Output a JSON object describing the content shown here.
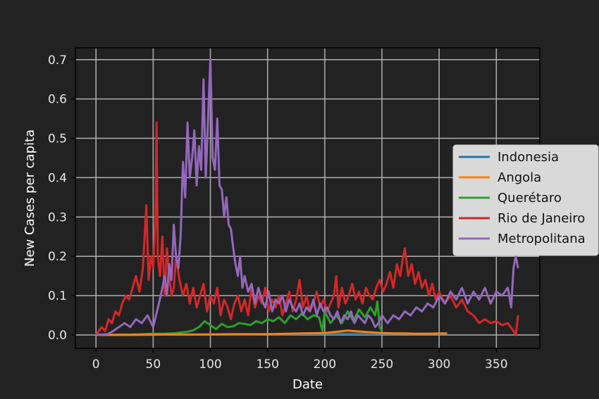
{
  "chart_data": {
    "type": "line",
    "title": "",
    "xlabel": "Date",
    "ylabel": "New Cases per capita",
    "xlim": [
      -18,
      388
    ],
    "ylim": [
      -0.034,
      0.73
    ],
    "xticks": [
      0,
      50,
      100,
      150,
      200,
      250,
      300,
      350
    ],
    "yticks": [
      0.0,
      0.1,
      0.2,
      0.3,
      0.4,
      0.5,
      0.6,
      0.7
    ],
    "xtick_labels": [
      "0",
      "50",
      "100",
      "150",
      "200",
      "250",
      "300",
      "350"
    ],
    "ytick_labels": [
      "0.0",
      "0.1",
      "0.2",
      "0.3",
      "0.4",
      "0.5",
      "0.6",
      "0.7"
    ],
    "grid": true,
    "legend_position": "center-right",
    "series": [
      {
        "name": "Indonesia",
        "color": "#1f77b4",
        "x": [
          0,
          50,
          100,
          150,
          200,
          250,
          300,
          307
        ],
        "values": [
          0.0,
          0.001,
          0.001,
          0.002,
          0.003,
          0.003,
          0.003,
          0.003
        ]
      },
      {
        "name": "Angola",
        "color": "#ff7f0e",
        "x": [
          0,
          30,
          60,
          90,
          120,
          150,
          180,
          200,
          210,
          220,
          230,
          240,
          250,
          260,
          270,
          280,
          290,
          300,
          307
        ],
        "values": [
          0.0,
          0.0,
          0.001,
          0.001,
          0.002,
          0.002,
          0.004,
          0.005,
          0.008,
          0.011,
          0.009,
          0.007,
          0.005,
          0.004,
          0.004,
          0.003,
          0.003,
          0.004,
          0.004
        ]
      },
      {
        "name": "Querétaro",
        "color": "#2ca02c",
        "x": [
          0,
          10,
          20,
          30,
          40,
          50,
          60,
          70,
          80,
          85,
          90,
          95,
          100,
          105,
          110,
          115,
          120,
          125,
          130,
          135,
          140,
          145,
          150,
          155,
          160,
          165,
          170,
          175,
          180,
          185,
          190,
          195,
          198,
          200,
          205,
          210,
          215,
          220,
          225,
          230,
          235,
          240,
          244,
          246,
          248,
          250
        ],
        "values": [
          0.0,
          0.0,
          0.001,
          0.001,
          0.002,
          0.003,
          0.003,
          0.005,
          0.008,
          0.012,
          0.02,
          0.035,
          0.025,
          0.015,
          0.028,
          0.02,
          0.022,
          0.03,
          0.028,
          0.025,
          0.035,
          0.03,
          0.04,
          0.035,
          0.045,
          0.03,
          0.05,
          0.04,
          0.055,
          0.04,
          0.05,
          0.045,
          0.01,
          0.06,
          0.03,
          0.05,
          0.03,
          0.06,
          0.035,
          0.065,
          0.045,
          0.07,
          0.05,
          0.085,
          0.02,
          0.01
        ]
      },
      {
        "name": "Rio de Janeiro",
        "color": "#d62728",
        "x": [
          0,
          5,
          8,
          11,
          14,
          17,
          20,
          23,
          26,
          29,
          32,
          35,
          38,
          41,
          44,
          46,
          48,
          50,
          52,
          53,
          54,
          56,
          58,
          60,
          62,
          64,
          66,
          68,
          70,
          73,
          76,
          79,
          82,
          85,
          88,
          91,
          94,
          97,
          100,
          103,
          106,
          109,
          112,
          115,
          118,
          121,
          124,
          127,
          130,
          133,
          136,
          139,
          142,
          145,
          148,
          151,
          154,
          157,
          160,
          163,
          166,
          169,
          172,
          175,
          178,
          181,
          184,
          187,
          190,
          193,
          196,
          199,
          202,
          205,
          208,
          210,
          212,
          215,
          218,
          221,
          224,
          227,
          230,
          233,
          236,
          239,
          242,
          245,
          248,
          251,
          254,
          257,
          260,
          263,
          266,
          268,
          270,
          273,
          276,
          279,
          282,
          285,
          288,
          291,
          294,
          297,
          300,
          305,
          310,
          315,
          320,
          325,
          330,
          335,
          340,
          345,
          350,
          355,
          360,
          365,
          367,
          369
        ],
        "values": [
          0.0,
          0.02,
          0.01,
          0.04,
          0.03,
          0.06,
          0.05,
          0.08,
          0.1,
          0.09,
          0.12,
          0.15,
          0.11,
          0.17,
          0.33,
          0.14,
          0.2,
          0.17,
          0.3,
          0.54,
          0.2,
          0.15,
          0.25,
          0.1,
          0.22,
          0.15,
          0.1,
          0.12,
          0.2,
          0.14,
          0.1,
          0.13,
          0.08,
          0.12,
          0.07,
          0.1,
          0.13,
          0.06,
          0.1,
          0.08,
          0.12,
          0.05,
          0.09,
          0.07,
          0.04,
          0.08,
          0.1,
          0.06,
          0.09,
          0.05,
          0.12,
          0.07,
          0.1,
          0.08,
          0.12,
          0.06,
          0.09,
          0.07,
          0.1,
          0.05,
          0.08,
          0.11,
          0.06,
          0.09,
          0.14,
          0.07,
          0.1,
          0.06,
          0.08,
          0.11,
          0.07,
          0.09,
          0.06,
          0.08,
          0.1,
          0.15,
          0.07,
          0.12,
          0.08,
          0.1,
          0.13,
          0.09,
          0.11,
          0.08,
          0.12,
          0.1,
          0.09,
          0.12,
          0.14,
          0.11,
          0.13,
          0.16,
          0.12,
          0.18,
          0.15,
          0.19,
          0.22,
          0.15,
          0.18,
          0.13,
          0.16,
          0.12,
          0.14,
          0.1,
          0.13,
          0.09,
          0.11,
          0.08,
          0.1,
          0.07,
          0.09,
          0.06,
          0.05,
          0.03,
          0.04,
          0.03,
          0.035,
          0.025,
          0.03,
          0.01,
          0.0,
          0.05
        ]
      },
      {
        "name": "Metropolitana",
        "color": "#9467bd",
        "x": [
          0,
          10,
          15,
          20,
          25,
          30,
          35,
          40,
          45,
          50,
          55,
          58,
          60,
          62,
          64,
          66,
          68,
          70,
          72,
          74,
          76,
          78,
          80,
          82,
          84,
          86,
          88,
          90,
          92,
          94,
          96,
          98,
          100,
          102,
          104,
          106,
          108,
          110,
          112,
          114,
          116,
          118,
          120,
          122,
          124,
          126,
          128,
          130,
          133,
          136,
          139,
          142,
          145,
          148,
          151,
          154,
          157,
          160,
          163,
          166,
          169,
          172,
          175,
          178,
          181,
          184,
          187,
          190,
          193,
          196,
          199,
          202,
          205,
          208,
          211,
          214,
          217,
          220,
          223,
          226,
          229,
          232,
          235,
          238,
          241,
          244,
          247,
          250,
          255,
          260,
          265,
          270,
          275,
          280,
          285,
          290,
          295,
          300,
          305,
          310,
          315,
          320,
          325,
          330,
          335,
          340,
          345,
          350,
          355,
          360,
          363,
          365,
          367,
          369
        ],
        "values": [
          0.0,
          0.002,
          0.01,
          0.02,
          0.03,
          0.02,
          0.04,
          0.03,
          0.05,
          0.02,
          0.08,
          0.12,
          0.15,
          0.1,
          0.18,
          0.14,
          0.28,
          0.2,
          0.17,
          0.25,
          0.44,
          0.35,
          0.54,
          0.4,
          0.45,
          0.52,
          0.38,
          0.48,
          0.42,
          0.65,
          0.4,
          0.55,
          0.7,
          0.45,
          0.42,
          0.55,
          0.38,
          0.37,
          0.3,
          0.35,
          0.28,
          0.27,
          0.22,
          0.18,
          0.15,
          0.2,
          0.12,
          0.15,
          0.11,
          0.13,
          0.08,
          0.12,
          0.09,
          0.07,
          0.11,
          0.06,
          0.09,
          0.08,
          0.1,
          0.06,
          0.09,
          0.07,
          0.06,
          0.08,
          0.05,
          0.07,
          0.06,
          0.09,
          0.05,
          0.08,
          0.06,
          0.07,
          0.05,
          0.04,
          0.06,
          0.03,
          0.05,
          0.04,
          0.06,
          0.03,
          0.05,
          0.04,
          0.03,
          0.05,
          0.04,
          0.02,
          0.03,
          0.05,
          0.03,
          0.05,
          0.04,
          0.06,
          0.05,
          0.07,
          0.06,
          0.08,
          0.07,
          0.1,
          0.08,
          0.11,
          0.09,
          0.12,
          0.08,
          0.11,
          0.09,
          0.12,
          0.08,
          0.11,
          0.1,
          0.12,
          0.07,
          0.17,
          0.2,
          0.17
        ]
      }
    ]
  }
}
